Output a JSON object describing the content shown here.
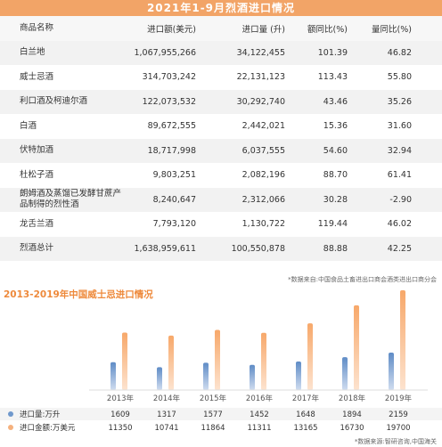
{
  "table": {
    "title": "2021年1-9月烈酒进口情况",
    "headers": [
      "商品名称",
      "进口额(美元)",
      "进口量 (升)",
      "额同比(%)",
      "量同比(%)"
    ],
    "rows": [
      [
        "白兰地",
        "1,067,955,266",
        "34,122,455",
        "101.39",
        "46.82"
      ],
      [
        "威士忌酒",
        "314,703,242",
        "22,131,123",
        "113.43",
        "55.80"
      ],
      [
        "利口酒及柯迪尔酒",
        "122,073,532",
        "30,292,740",
        "43.46",
        "35.26"
      ],
      [
        "白酒",
        "89,672,555",
        "2,442,021",
        "15.36",
        "31.60"
      ],
      [
        "伏特加酒",
        "18,717,998",
        "6,037,555",
        "54.60",
        "32.94"
      ],
      [
        "杜松子酒",
        "9,803,251",
        "2,082,196",
        "88.70",
        "61.41"
      ],
      [
        "朗姆酒及蒸馏已发酵甘蔗产品制得的烈性酒",
        "8,240,647",
        "2,312,066",
        "30.28",
        "-2.90"
      ],
      [
        "龙舌兰酒",
        "7,793,120",
        "1,130,722",
        "119.44",
        "46.02"
      ],
      [
        "烈酒总计",
        "1,638,959,611",
        "100,550,878",
        "88.88",
        "42.25"
      ]
    ],
    "note": "*数据来自:中国食品土畜进出口商会酒类进出口商分会"
  },
  "chart_data": {
    "type": "bar",
    "title": "2013-2019年中国威士忌进口情况",
    "categories": [
      "2013年",
      "2014年",
      "2015年",
      "2016年",
      "2017年",
      "2018年",
      "2019年"
    ],
    "series": [
      {
        "name": "进口量:万升",
        "color": "#6f98cc",
        "values": [
          1609,
          1317,
          1577,
          1452,
          1648,
          1894,
          2159
        ]
      },
      {
        "name": "进口金额:万美元",
        "color": "#f5b17e",
        "values": [
          11350,
          10741,
          11864,
          11311,
          13165,
          16730,
          19700
        ]
      }
    ],
    "source": "*数据来源:智研咨询,中国海关"
  }
}
